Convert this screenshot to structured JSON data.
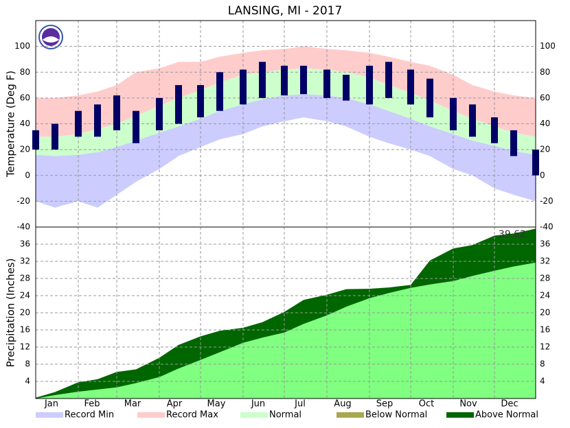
{
  "title": "LANSING, MI - 2017",
  "legend": [
    {
      "name": "Record Min",
      "color": "#ccccff"
    },
    {
      "name": "Record Max",
      "color": "#ffcccc"
    },
    {
      "name": "Normal",
      "color": "#ccffcc"
    },
    {
      "name": "Below Normal",
      "color": "#a8a850"
    },
    {
      "name": "Above Normal",
      "color": "#006600"
    }
  ],
  "chart_data": [
    {
      "type": "temperature-band",
      "y_label": "Temperature (Deg F)",
      "x": [
        1,
        15,
        32,
        46,
        60,
        74,
        91,
        105,
        121,
        135,
        152,
        166,
        182,
        196,
        213,
        227,
        244,
        258,
        274,
        288,
        305,
        319,
        335,
        349,
        365
      ],
      "ylim": [
        -40,
        120
      ],
      "yticks": [
        -40,
        -20,
        0,
        20,
        40,
        60,
        80,
        100
      ],
      "grid": true,
      "record_min": {
        "color": "#ccccff",
        "values": [
          -20,
          -25,
          -20,
          -25,
          -15,
          -5,
          5,
          15,
          22,
          28,
          32,
          38,
          42,
          45,
          42,
          38,
          30,
          25,
          20,
          15,
          5,
          0,
          -10,
          -15,
          -20
        ]
      },
      "record_max": {
        "color": "#ffcccc",
        "values": [
          60,
          60,
          62,
          65,
          70,
          80,
          83,
          88,
          88,
          92,
          95,
          97,
          98,
          100,
          98,
          97,
          95,
          92,
          88,
          85,
          78,
          70,
          65,
          62,
          60
        ]
      },
      "normal": {
        "color": "#ccffcc",
        "low": [
          16,
          15,
          16,
          18,
          22,
          27,
          33,
          38,
          44,
          50,
          55,
          59,
          62,
          63,
          62,
          60,
          55,
          50,
          44,
          38,
          32,
          27,
          23,
          19,
          16
        ],
        "high": [
          30,
          30,
          32,
          36,
          40,
          46,
          54,
          60,
          66,
          72,
          78,
          80,
          82,
          83,
          82,
          80,
          76,
          70,
          64,
          58,
          50,
          44,
          38,
          33,
          30
        ]
      },
      "observed": {
        "color": "#000066",
        "low": [
          20,
          20,
          30,
          30,
          35,
          25,
          35,
          40,
          45,
          50,
          55,
          60,
          62,
          63,
          60,
          58,
          55,
          60,
          55,
          45,
          35,
          30,
          25,
          15,
          0
        ],
        "high": [
          35,
          40,
          50,
          55,
          62,
          50,
          60,
          70,
          70,
          80,
          82,
          88,
          85,
          85,
          82,
          78,
          85,
          88,
          82,
          75,
          60,
          55,
          45,
          35,
          20
        ]
      }
    },
    {
      "type": "cumulative-precip",
      "y_label": "Precipitation (Inches)",
      "x": [
        1,
        15,
        32,
        46,
        60,
        74,
        91,
        105,
        121,
        135,
        152,
        166,
        182,
        196,
        213,
        227,
        244,
        258,
        274,
        288,
        305,
        319,
        335,
        349,
        365
      ],
      "xlim": [
        1,
        365
      ],
      "xticks": [
        {
          "value": 1,
          "label": "Jan"
        },
        {
          "value": 32,
          "label": "Feb"
        },
        {
          "value": 60,
          "label": "Mar"
        },
        {
          "value": 91,
          "label": "Apr"
        },
        {
          "value": 121,
          "label": "May"
        },
        {
          "value": 152,
          "label": "Jun"
        },
        {
          "value": 182,
          "label": "Jul"
        },
        {
          "value": 213,
          "label": "Aug"
        },
        {
          "value": 244,
          "label": "Sep"
        },
        {
          "value": 274,
          "label": "Oct"
        },
        {
          "value": 305,
          "label": "Nov"
        },
        {
          "value": 335,
          "label": "Dec"
        }
      ],
      "ylim": [
        0,
        40
      ],
      "yticks": [
        4,
        8,
        12,
        16,
        20,
        24,
        28,
        32,
        36
      ],
      "grid": true,
      "normal": {
        "color": "#80ff80",
        "values": [
          0,
          0.8,
          1.6,
          2.1,
          2.6,
          3.6,
          5.0,
          7.0,
          9.0,
          10.8,
          13.0,
          14.2,
          15.4,
          17.4,
          19.4,
          21.4,
          23.4,
          24.6,
          25.8,
          26.6,
          27.4,
          28.6,
          29.8,
          30.8,
          31.7
        ]
      },
      "actual": {
        "above_color": "#006600",
        "below_color": "#a8a850",
        "values": [
          0.2,
          1.5,
          3.8,
          4.5,
          6.2,
          6.8,
          9.5,
          12.5,
          14.5,
          15.8,
          16.5,
          17.8,
          20.2,
          23.0,
          24.2,
          25.5,
          25.6,
          25.9,
          26.5,
          32.2,
          35.0,
          35.8,
          38.0,
          38.5,
          39.62
        ]
      },
      "annotation": "39.62"
    }
  ]
}
